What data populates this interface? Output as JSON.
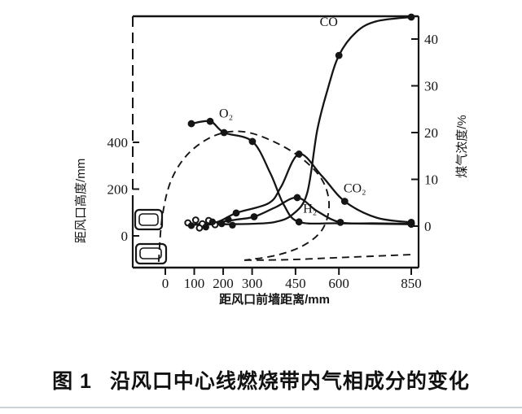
{
  "figure": {
    "caption_label": "图 1",
    "caption_text": "沿风口中心线燃烧带内气相成分的变化"
  },
  "chart_data": {
    "type": "line",
    "title": "",
    "x_axis": {
      "label": "距风口前墙距离/mm",
      "ticks": [
        0,
        100,
        200,
        300,
        450,
        600,
        850
      ],
      "range": [
        0,
        875
      ],
      "unit": "mm"
    },
    "y_left": {
      "label": "距风口高度/mm",
      "ticks": [
        0,
        200,
        400
      ],
      "range": [
        -135,
        460
      ],
      "unit": "mm"
    },
    "y_right": {
      "label": "煤气浓度/%",
      "ticks": [
        0,
        10,
        20,
        30,
        40
      ],
      "range": [
        0,
        45
      ],
      "unit": "%"
    },
    "grid": false,
    "legend_position": "inline-labels",
    "series": [
      {
        "id": "O2",
        "label": "O₂",
        "label_at": [
          210,
          23.2
        ],
        "points": [
          [
            90,
            21.9
          ],
          [
            155,
            22.4
          ],
          [
            203,
            20.0
          ],
          [
            301,
            18.1
          ],
          [
            363,
            11.3
          ],
          [
            410,
            4.5
          ],
          [
            462,
            0.9
          ],
          [
            600,
            0.6
          ],
          [
            850,
            0.4
          ]
        ],
        "markers": [
          [
            90,
            21.9
          ],
          [
            155,
            22.4
          ],
          [
            203,
            20.0
          ],
          [
            301,
            18.1
          ],
          [
            462,
            0.9
          ],
          [
            850,
            0.4
          ]
        ]
      },
      {
        "id": "CO",
        "label": "CO",
        "label_at": [
          565,
          42.8
        ],
        "points": [
          [
            100,
            0.3
          ],
          [
            200,
            0.4
          ],
          [
            300,
            0.5
          ],
          [
            380,
            0.9
          ],
          [
            440,
            2.5
          ],
          [
            490,
            7
          ],
          [
            525,
            20.5
          ],
          [
            560,
            29
          ],
          [
            600,
            36.5
          ],
          [
            660,
            41.5
          ],
          [
            730,
            43.8
          ],
          [
            850,
            44.7
          ]
        ],
        "markers": [
          [
            600,
            36.5
          ],
          [
            850,
            44.7
          ]
        ]
      },
      {
        "id": "CO2",
        "label": "CO₂",
        "label_at": [
          655,
          7.2
        ],
        "points": [
          [
            100,
            0.4
          ],
          [
            180,
            0.9
          ],
          [
            245,
            2.8
          ],
          [
            357,
            4.9
          ],
          [
            400,
            8.4
          ],
          [
            462,
            15.4
          ],
          [
            540,
            10.8
          ],
          [
            620,
            5.3
          ],
          [
            730,
            1.8
          ],
          [
            850,
            0.8
          ]
        ],
        "markers": [
          [
            245,
            2.8
          ],
          [
            462,
            15.4
          ],
          [
            620,
            5.3
          ],
          [
            850,
            0.8
          ]
        ]
      },
      {
        "id": "H2",
        "label": "H₂",
        "label_at": [
          500,
          2.9
        ],
        "points": [
          [
            100,
            0.3
          ],
          [
            170,
            0.7
          ],
          [
            245,
            1.4
          ],
          [
            307,
            2.0
          ],
          [
            380,
            4.0
          ],
          [
            456,
            6.1
          ],
          [
            525,
            3.2
          ],
          [
            605,
            0.8
          ],
          [
            720,
            0.6
          ],
          [
            850,
            0.5
          ]
        ],
        "markers": [
          [
            307,
            2.0
          ],
          [
            456,
            6.1
          ],
          [
            605,
            0.8
          ],
          [
            850,
            0.5
          ]
        ]
      }
    ],
    "cluster_points": [
      {
        "x": 78,
        "y": 0.7,
        "style": "open"
      },
      {
        "x": 105,
        "y": 1.3,
        "style": "open"
      },
      {
        "x": 128,
        "y": 0.5,
        "style": "open"
      },
      {
        "x": 150,
        "y": 1.2,
        "style": "open"
      },
      {
        "x": 172,
        "y": 0.3,
        "style": "open"
      },
      {
        "x": 118,
        "y": -0.4,
        "style": "open"
      },
      {
        "x": 90,
        "y": 0.1,
        "style": "filled"
      },
      {
        "x": 140,
        "y": -0.2,
        "style": "filled"
      },
      {
        "x": 163,
        "y": 0.9,
        "style": "filled"
      },
      {
        "x": 195,
        "y": 0.5,
        "style": "filled"
      },
      {
        "x": 218,
        "y": 1.4,
        "style": "filled"
      },
      {
        "x": 232,
        "y": 0.2,
        "style": "filled"
      }
    ],
    "raceway_boundary": {
      "outline": [
        [
          -23,
          -111
        ],
        [
          -11,
          77
        ],
        [
          20,
          237
        ],
        [
          82,
          355
        ],
        [
          175,
          431
        ],
        [
          273,
          445
        ],
        [
          380,
          400
        ],
        [
          476,
          327
        ],
        [
          543,
          237
        ],
        [
          566,
          132
        ],
        [
          543,
          28
        ],
        [
          476,
          -42
        ],
        [
          380,
          -84
        ],
        [
          273,
          -104
        ]
      ],
      "tail": [
        [
          273,
          -104
        ],
        [
          420,
          -102
        ],
        [
          600,
          -93
        ],
        [
          850,
          -80
        ]
      ]
    },
    "style": {
      "ink": "#151515",
      "divider": "#ccd2d8"
    }
  }
}
